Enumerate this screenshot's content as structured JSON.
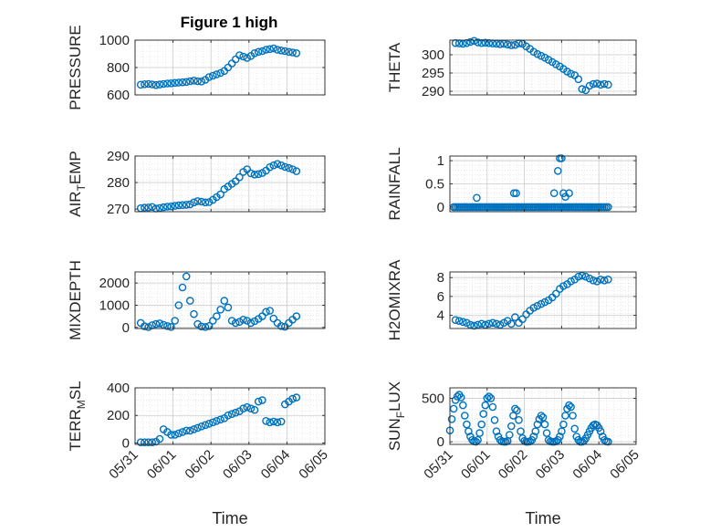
{
  "figure": {
    "title": "Figure 1 high"
  },
  "style": {
    "marker_color": "#0072BD",
    "axis_color": "#262626",
    "grid_color": "#d9d9d9"
  },
  "chart_data": [
    {
      "type": "scatter",
      "id": "pressure",
      "title": "Figure 1 high",
      "ylabel": "PRESSURE",
      "ylabel_sub": "",
      "xlabel": "",
      "xlim": [
        "05/31",
        "06/05"
      ],
      "ylim": [
        600,
        1000
      ],
      "yticks": [
        600,
        800,
        1000
      ],
      "ytick_labels": [
        "600",
        "800",
        "1000"
      ],
      "xtick_labels": [],
      "grid": true,
      "marker": "open-circle",
      "x_days": [
        0.15,
        0.25,
        0.35,
        0.45,
        0.55,
        0.65,
        0.75,
        0.85,
        0.95,
        1.05,
        1.15,
        1.25,
        1.35,
        1.45,
        1.55,
        1.65,
        1.75,
        1.85,
        1.95,
        2.05,
        2.15,
        2.25,
        2.35,
        2.45,
        2.55,
        2.65,
        2.75,
        2.85,
        2.95,
        3.05,
        3.15,
        3.25,
        3.35,
        3.45,
        3.55,
        3.65,
        3.75,
        3.85,
        3.95,
        4.05,
        4.15,
        4.25
      ],
      "values": [
        675,
        678,
        680,
        677,
        672,
        676,
        680,
        683,
        685,
        688,
        690,
        692,
        695,
        700,
        705,
        700,
        698,
        710,
        730,
        740,
        750,
        760,
        775,
        800,
        830,
        860,
        890,
        880,
        870,
        885,
        905,
        915,
        920,
        930,
        935,
        940,
        930,
        925,
        920,
        915,
        910,
        905
      ]
    },
    {
      "type": "scatter",
      "id": "theta",
      "title": "",
      "ylabel": "THETA",
      "ylabel_sub": "",
      "xlabel": "",
      "xlim": [
        "05/31",
        "06/05"
      ],
      "ylim": [
        289,
        304
      ],
      "yticks": [
        290,
        295,
        300
      ],
      "ytick_labels": [
        "290",
        "295",
        "300"
      ],
      "xtick_labels": [],
      "grid": true,
      "marker": "open-circle",
      "x_days": [
        0.15,
        0.25,
        0.35,
        0.45,
        0.55,
        0.65,
        0.75,
        0.85,
        0.95,
        1.05,
        1.15,
        1.25,
        1.35,
        1.45,
        1.55,
        1.65,
        1.75,
        1.85,
        1.95,
        2.05,
        2.15,
        2.25,
        2.35,
        2.45,
        2.55,
        2.65,
        2.75,
        2.85,
        2.95,
        3.05,
        3.15,
        3.25,
        3.35,
        3.45,
        3.55,
        3.65,
        3.75,
        3.85,
        3.95,
        4.05,
        4.15,
        4.25
      ],
      "values": [
        303.2,
        303.1,
        303.0,
        303.2,
        303.5,
        303.8,
        303.4,
        303.2,
        303.3,
        303.2,
        303.1,
        303.0,
        302.9,
        303.0,
        302.8,
        302.6,
        302.7,
        303.1,
        303.0,
        302.3,
        301.6,
        300.8,
        300.2,
        299.7,
        299.2,
        298.6,
        298.0,
        297.4,
        296.8,
        296.1,
        295.4,
        294.8,
        294.4,
        293.3,
        290.6,
        290.3,
        291.5,
        292.0,
        292.1,
        291.8,
        292.0,
        291.8
      ]
    },
    {
      "type": "scatter",
      "id": "air_temp",
      "title": "",
      "ylabel": "AIR",
      "ylabel_sub": "T",
      "ylabel_rest": "EMP",
      "xlabel": "",
      "xlim": [
        "05/31",
        "06/05"
      ],
      "ylim": [
        269,
        290
      ],
      "yticks": [
        270,
        280,
        290
      ],
      "ytick_labels": [
        "270",
        "280",
        "290"
      ],
      "xtick_labels": [],
      "grid": true,
      "marker": "open-circle",
      "x_days": [
        0.15,
        0.25,
        0.35,
        0.45,
        0.55,
        0.65,
        0.75,
        0.85,
        0.95,
        1.05,
        1.15,
        1.25,
        1.35,
        1.45,
        1.55,
        1.65,
        1.75,
        1.85,
        1.95,
        2.05,
        2.15,
        2.25,
        2.35,
        2.45,
        2.55,
        2.65,
        2.75,
        2.85,
        2.95,
        3.05,
        3.15,
        3.25,
        3.35,
        3.45,
        3.55,
        3.65,
        3.75,
        3.85,
        3.95,
        4.05,
        4.15,
        4.25
      ],
      "values": [
        270.3,
        270.5,
        270.6,
        270.8,
        270.2,
        270.4,
        270.7,
        270.9,
        271.0,
        271.2,
        271.4,
        271.5,
        271.6,
        271.8,
        272.5,
        273.0,
        272.8,
        272.5,
        272.6,
        273.5,
        274.5,
        275.5,
        277.5,
        278.5,
        279.5,
        280.5,
        282.0,
        284.0,
        285.0,
        283.5,
        283.0,
        283.2,
        283.6,
        284.5,
        285.8,
        286.5,
        287.0,
        286.5,
        285.9,
        285.5,
        285.0,
        284.3
      ]
    },
    {
      "type": "scatter",
      "id": "rainfall",
      "title": "",
      "ylabel": "RAINFALL",
      "ylabel_sub": "",
      "xlabel": "",
      "xlim": [
        "05/31",
        "06/05"
      ],
      "ylim": [
        -0.1,
        1.1
      ],
      "yticks": [
        0,
        0.5,
        1
      ],
      "ytick_labels": [
        "0",
        "0.5",
        "1"
      ],
      "xtick_labels": [],
      "grid": true,
      "marker": "open-circle",
      "x_days": [
        0.1,
        0.15,
        0.2,
        0.25,
        0.3,
        0.35,
        0.4,
        0.45,
        0.5,
        0.55,
        0.6,
        0.65,
        0.7,
        0.75,
        0.8,
        0.85,
        0.9,
        0.95,
        1.0,
        1.05,
        1.1,
        1.15,
        1.2,
        1.25,
        1.3,
        1.35,
        1.4,
        1.45,
        1.5,
        1.55,
        1.6,
        1.65,
        1.7,
        1.75,
        1.8,
        1.85,
        1.9,
        1.95,
        2.0,
        2.05,
        2.1,
        2.15,
        2.2,
        2.25,
        2.3,
        2.35,
        2.4,
        2.45,
        2.5,
        2.55,
        2.6,
        2.65,
        2.7,
        2.75,
        2.8,
        2.85,
        2.9,
        2.95,
        3.0,
        3.05,
        3.1,
        3.15,
        3.2,
        3.25,
        3.3,
        3.35,
        3.4,
        3.45,
        3.5,
        3.55,
        3.6,
        3.65,
        3.7,
        3.75,
        3.8,
        3.85,
        3.9,
        3.95,
        4.0,
        4.05,
        4.1,
        4.15,
        4.2,
        4.25,
        0.72,
        1.72,
        1.78,
        2.8,
        2.9,
        2.95,
        3.0,
        3.05,
        3.1,
        3.2
      ],
      "values": [
        0,
        0,
        0,
        0,
        0,
        0,
        0,
        0,
        0,
        0,
        0,
        0,
        0,
        0,
        0,
        0,
        0,
        0,
        0,
        0,
        0,
        0,
        0,
        0,
        0,
        0,
        0,
        0,
        0,
        0,
        0,
        0,
        0,
        0,
        0,
        0,
        0,
        0,
        0,
        0,
        0,
        0,
        0,
        0,
        0,
        0,
        0,
        0,
        0,
        0,
        0,
        0,
        0,
        0,
        0,
        0,
        0,
        0,
        0,
        0,
        0,
        0,
        0,
        0,
        0,
        0,
        0,
        0,
        0,
        0,
        0,
        0,
        0,
        0,
        0,
        0,
        0,
        0,
        0,
        0,
        0,
        0,
        0,
        0,
        0.2,
        0.3,
        0.3,
        0.3,
        0.78,
        1.05,
        1.05,
        0.3,
        0.22,
        0.3
      ]
    },
    {
      "type": "scatter",
      "id": "mixdepth",
      "title": "",
      "ylabel": "MIXDEPTH",
      "ylabel_sub": "",
      "xlabel": "",
      "xlim": [
        "05/31",
        "06/05"
      ],
      "ylim": [
        -50,
        2500
      ],
      "yticks": [
        0,
        1000,
        2000
      ],
      "ytick_labels": [
        "0",
        "1000",
        "2000"
      ],
      "xtick_labels": [],
      "grid": true,
      "marker": "open-circle",
      "x_days": [
        0.15,
        0.25,
        0.35,
        0.45,
        0.55,
        0.65,
        0.75,
        0.85,
        0.95,
        1.05,
        1.15,
        1.25,
        1.35,
        1.45,
        1.55,
        1.65,
        1.75,
        1.85,
        1.95,
        2.05,
        2.15,
        2.25,
        2.35,
        2.45,
        2.55,
        2.65,
        2.75,
        2.85,
        2.95,
        3.05,
        3.15,
        3.25,
        3.35,
        3.45,
        3.55,
        3.65,
        3.75,
        3.85,
        3.95,
        4.05,
        4.15,
        4.25
      ],
      "values": [
        200,
        50,
        10,
        100,
        150,
        180,
        120,
        60,
        20,
        300,
        1000,
        1800,
        2300,
        1200,
        600,
        150,
        40,
        20,
        60,
        300,
        500,
        800,
        1200,
        900,
        300,
        200,
        250,
        350,
        300,
        200,
        280,
        380,
        500,
        700,
        750,
        400,
        200,
        60,
        30,
        200,
        350,
        500
      ]
    },
    {
      "type": "scatter",
      "id": "h2omixra",
      "title": "",
      "ylabel": "H2OMIXRA",
      "ylabel_sub": "",
      "xlabel": "",
      "xlim": [
        "05/31",
        "06/05"
      ],
      "ylim": [
        2.6,
        8.6
      ],
      "yticks": [
        4,
        6,
        8
      ],
      "ytick_labels": [
        "4",
        "6",
        "8"
      ],
      "xtick_labels": [],
      "grid": true,
      "marker": "open-circle",
      "x_days": [
        0.15,
        0.25,
        0.35,
        0.45,
        0.55,
        0.65,
        0.75,
        0.85,
        0.95,
        1.05,
        1.15,
        1.25,
        1.35,
        1.45,
        1.55,
        1.65,
        1.75,
        1.85,
        1.95,
        2.05,
        2.15,
        2.25,
        2.35,
        2.45,
        2.55,
        2.65,
        2.75,
        2.85,
        2.95,
        3.05,
        3.15,
        3.25,
        3.35,
        3.45,
        3.55,
        3.65,
        3.75,
        3.85,
        3.95,
        4.05,
        4.15,
        4.25
      ],
      "values": [
        3.5,
        3.4,
        3.3,
        3.2,
        3.0,
        2.9,
        3.0,
        3.1,
        3.0,
        3.1,
        3.2,
        3.1,
        3.0,
        3.2,
        3.4,
        3.1,
        3.8,
        3.2,
        3.6,
        4.1,
        4.5,
        4.8,
        5.0,
        5.2,
        5.4,
        5.6,
        5.9,
        6.3,
        6.8,
        7.1,
        7.3,
        7.6,
        7.8,
        8.1,
        8.2,
        8.1,
        7.9,
        7.7,
        7.6,
        7.8,
        7.7,
        7.8
      ]
    },
    {
      "type": "scatter",
      "id": "terr_msl",
      "title": "",
      "ylabel": "TERR",
      "ylabel_sub": "M",
      "ylabel_rest": "SL",
      "xlabel": "Time",
      "xlim": [
        "05/31",
        "06/05"
      ],
      "ylim": [
        -10,
        400
      ],
      "yticks": [
        0,
        200,
        400
      ],
      "ytick_labels": [
        "0",
        "200",
        "400"
      ],
      "xtick_labels": [
        "05/31",
        "06/01",
        "06/02",
        "06/03",
        "06/04",
        "06/05"
      ],
      "grid": true,
      "marker": "open-circle",
      "x_days": [
        0.15,
        0.25,
        0.35,
        0.45,
        0.55,
        0.65,
        0.75,
        0.85,
        0.95,
        1.05,
        1.15,
        1.25,
        1.35,
        1.45,
        1.55,
        1.65,
        1.75,
        1.85,
        1.95,
        2.05,
        2.15,
        2.25,
        2.35,
        2.45,
        2.55,
        2.65,
        2.75,
        2.85,
        2.95,
        3.05,
        3.15,
        3.25,
        3.35,
        3.45,
        3.55,
        3.65,
        3.75,
        3.85,
        3.95,
        4.05,
        4.15,
        4.25
      ],
      "values": [
        5,
        5,
        5,
        5,
        10,
        30,
        100,
        80,
        60,
        60,
        70,
        80,
        90,
        90,
        100,
        110,
        120,
        130,
        140,
        150,
        160,
        170,
        180,
        200,
        210,
        220,
        230,
        250,
        260,
        250,
        240,
        300,
        310,
        160,
        150,
        155,
        150,
        155,
        280,
        300,
        320,
        330
      ]
    },
    {
      "type": "scatter",
      "id": "sun_flux",
      "title": "",
      "ylabel": "SUN",
      "ylabel_sub": "F",
      "ylabel_rest": "LUX",
      "xlabel": "Time",
      "xlim": [
        "05/31",
        "06/05"
      ],
      "ylim": [
        -30,
        620
      ],
      "yticks": [
        0,
        500
      ],
      "ytick_labels": [
        "0",
        "500"
      ],
      "xtick_labels": [
        "05/31",
        "06/01",
        "06/02",
        "06/03",
        "06/04",
        "06/05"
      ],
      "grid": true,
      "marker": "open-circle",
      "x_days": [
        0.0,
        0.05,
        0.1,
        0.15,
        0.2,
        0.25,
        0.3,
        0.35,
        0.4,
        0.45,
        0.5,
        0.55,
        0.6,
        0.65,
        0.7,
        0.75,
        0.8,
        0.85,
        0.9,
        0.95,
        1.0,
        1.05,
        1.1,
        1.15,
        1.2,
        1.25,
        1.3,
        1.35,
        1.4,
        1.45,
        1.5,
        1.55,
        1.6,
        1.65,
        1.7,
        1.75,
        1.8,
        1.85,
        1.9,
        1.95,
        2.0,
        2.05,
        2.1,
        2.15,
        2.2,
        2.25,
        2.3,
        2.35,
        2.4,
        2.45,
        2.5,
        2.55,
        2.6,
        2.65,
        2.7,
        2.75,
        2.8,
        2.85,
        2.9,
        2.95,
        3.0,
        3.05,
        3.1,
        3.15,
        3.2,
        3.25,
        3.3,
        3.35,
        3.4,
        3.45,
        3.5,
        3.55,
        3.6,
        3.65,
        3.7,
        3.75,
        3.8,
        3.85,
        3.9,
        3.95,
        4.0,
        4.05,
        4.1,
        4.15,
        4.2,
        4.25
      ],
      "values": [
        130,
        260,
        380,
        480,
        520,
        540,
        510,
        420,
        300,
        200,
        120,
        60,
        20,
        5,
        0,
        20,
        100,
        200,
        320,
        420,
        500,
        520,
        500,
        400,
        250,
        120,
        60,
        20,
        5,
        0,
        0,
        10,
        80,
        180,
        300,
        380,
        360,
        250,
        120,
        40,
        10,
        0,
        0,
        5,
        20,
        60,
        120,
        200,
        260,
        300,
        280,
        200,
        100,
        20,
        5,
        0,
        0,
        5,
        20,
        60,
        120,
        200,
        300,
        380,
        420,
        400,
        300,
        150,
        60,
        20,
        0,
        0,
        10,
        40,
        80,
        120,
        160,
        190,
        200,
        190,
        160,
        120,
        60,
        20,
        5,
        0
      ]
    }
  ]
}
